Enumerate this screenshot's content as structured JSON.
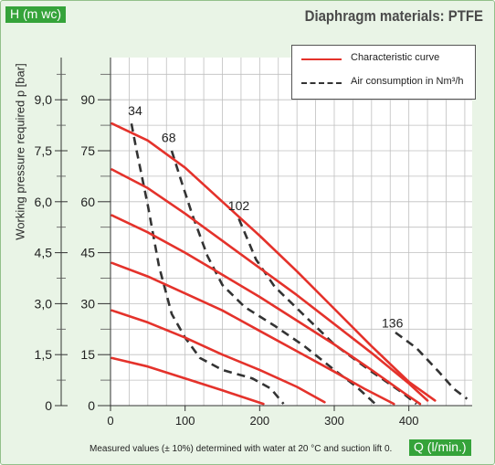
{
  "header": {
    "h_badge": "H (m wc)",
    "title": "Diaphragm materials: PTFE",
    "q_badge": "Q (l/min.)"
  },
  "footnote": "Measured values (± 10%) determined with water at 20 °C and suction lift 0.",
  "colors": {
    "characteristic": "#e4322b",
    "air": "#333333",
    "badge": "#35a33a",
    "background": "#e9f4e6"
  },
  "chart_data": {
    "type": "line",
    "title": "Diaphragm materials: PTFE",
    "xlabel": "Q (l/min.)",
    "ylabel": "Working pressure required p [bar]",
    "y2label": "H (m wc)",
    "xlim": [
      0,
      480
    ],
    "ylim": [
      0,
      10
    ],
    "x_ticks": [
      0,
      100,
      200,
      300,
      400
    ],
    "y_ticks": [
      "0",
      "1,5",
      "3,0",
      "4,5",
      "6,0",
      "7,5",
      "9,0"
    ],
    "y_tick_values": [
      0,
      1.5,
      3,
      4.5,
      6,
      7.5,
      9
    ],
    "h_ticks": [
      "0",
      "15",
      "30",
      "45",
      "60",
      "75",
      "90"
    ],
    "legend": {
      "position": "top-right",
      "entries": [
        "Characteristic curve",
        "Air consumption in Nm³/h"
      ]
    },
    "characteristic_curves": [
      {
        "points": [
          [
            2,
            1.4
          ],
          [
            50,
            1.15
          ],
          [
            100,
            0.8
          ],
          [
            150,
            0.45
          ],
          [
            205,
            0.05
          ]
        ]
      },
      {
        "points": [
          [
            2,
            2.8
          ],
          [
            50,
            2.45
          ],
          [
            100,
            2.0
          ],
          [
            150,
            1.5
          ],
          [
            200,
            1.05
          ],
          [
            250,
            0.55
          ],
          [
            287,
            0.1
          ]
        ]
      },
      {
        "points": [
          [
            2,
            4.2
          ],
          [
            50,
            3.8
          ],
          [
            100,
            3.3
          ],
          [
            150,
            2.8
          ],
          [
            200,
            2.2
          ],
          [
            250,
            1.6
          ],
          [
            300,
            1.0
          ],
          [
            340,
            0.5
          ],
          [
            380,
            0.05
          ]
        ]
      },
      {
        "points": [
          [
            2,
            5.6
          ],
          [
            50,
            5.1
          ],
          [
            100,
            4.5
          ],
          [
            150,
            3.85
          ],
          [
            200,
            3.2
          ],
          [
            250,
            2.5
          ],
          [
            300,
            1.8
          ],
          [
            350,
            1.05
          ],
          [
            395,
            0.35
          ],
          [
            415,
            0.05
          ]
        ]
      },
      {
        "points": [
          [
            2,
            6.95
          ],
          [
            50,
            6.4
          ],
          [
            100,
            5.65
          ],
          [
            150,
            4.85
          ],
          [
            200,
            4.05
          ],
          [
            250,
            3.25
          ],
          [
            300,
            2.4
          ],
          [
            350,
            1.55
          ],
          [
            400,
            0.65
          ],
          [
            425,
            0.15
          ]
        ]
      },
      {
        "points": [
          [
            2,
            8.3
          ],
          [
            50,
            7.8
          ],
          [
            100,
            7.0
          ],
          [
            150,
            6.0
          ],
          [
            200,
            5.0
          ],
          [
            250,
            3.95
          ],
          [
            300,
            2.85
          ],
          [
            350,
            1.75
          ],
          [
            400,
            0.7
          ],
          [
            435,
            0.15
          ]
        ]
      }
    ],
    "air_curves": [
      {
        "label": "34",
        "points": [
          [
            28,
            8.3
          ],
          [
            35,
            7.5
          ],
          [
            50,
            5.9
          ],
          [
            65,
            4.1
          ],
          [
            82,
            2.7
          ],
          [
            100,
            2.0
          ],
          [
            120,
            1.4
          ],
          [
            150,
            1.05
          ],
          [
            190,
            0.8
          ],
          [
            215,
            0.5
          ],
          [
            232,
            0.05
          ]
        ]
      },
      {
        "label": "68",
        "points": [
          [
            82,
            7.5
          ],
          [
            95,
            6.6
          ],
          [
            110,
            5.6
          ],
          [
            130,
            4.4
          ],
          [
            150,
            3.55
          ],
          [
            180,
            2.9
          ],
          [
            220,
            2.35
          ],
          [
            260,
            1.75
          ],
          [
            300,
            1.05
          ],
          [
            330,
            0.55
          ],
          [
            355,
            0.05
          ]
        ]
      },
      {
        "label": "102",
        "points": [
          [
            172,
            5.5
          ],
          [
            195,
            4.3
          ],
          [
            220,
            3.5
          ],
          [
            260,
            2.65
          ],
          [
            300,
            1.8
          ],
          [
            350,
            1.0
          ],
          [
            390,
            0.4
          ],
          [
            410,
            0.05
          ]
        ]
      },
      {
        "label": "136",
        "points": [
          [
            382,
            2.15
          ],
          [
            410,
            1.7
          ],
          [
            440,
            1.0
          ],
          [
            460,
            0.5
          ],
          [
            478,
            0.2
          ]
        ]
      }
    ],
    "air_label_points": [
      [
        33,
        8.55
      ],
      [
        78,
        7.75
      ],
      [
        172,
        5.75
      ],
      [
        378,
        2.3
      ]
    ]
  }
}
